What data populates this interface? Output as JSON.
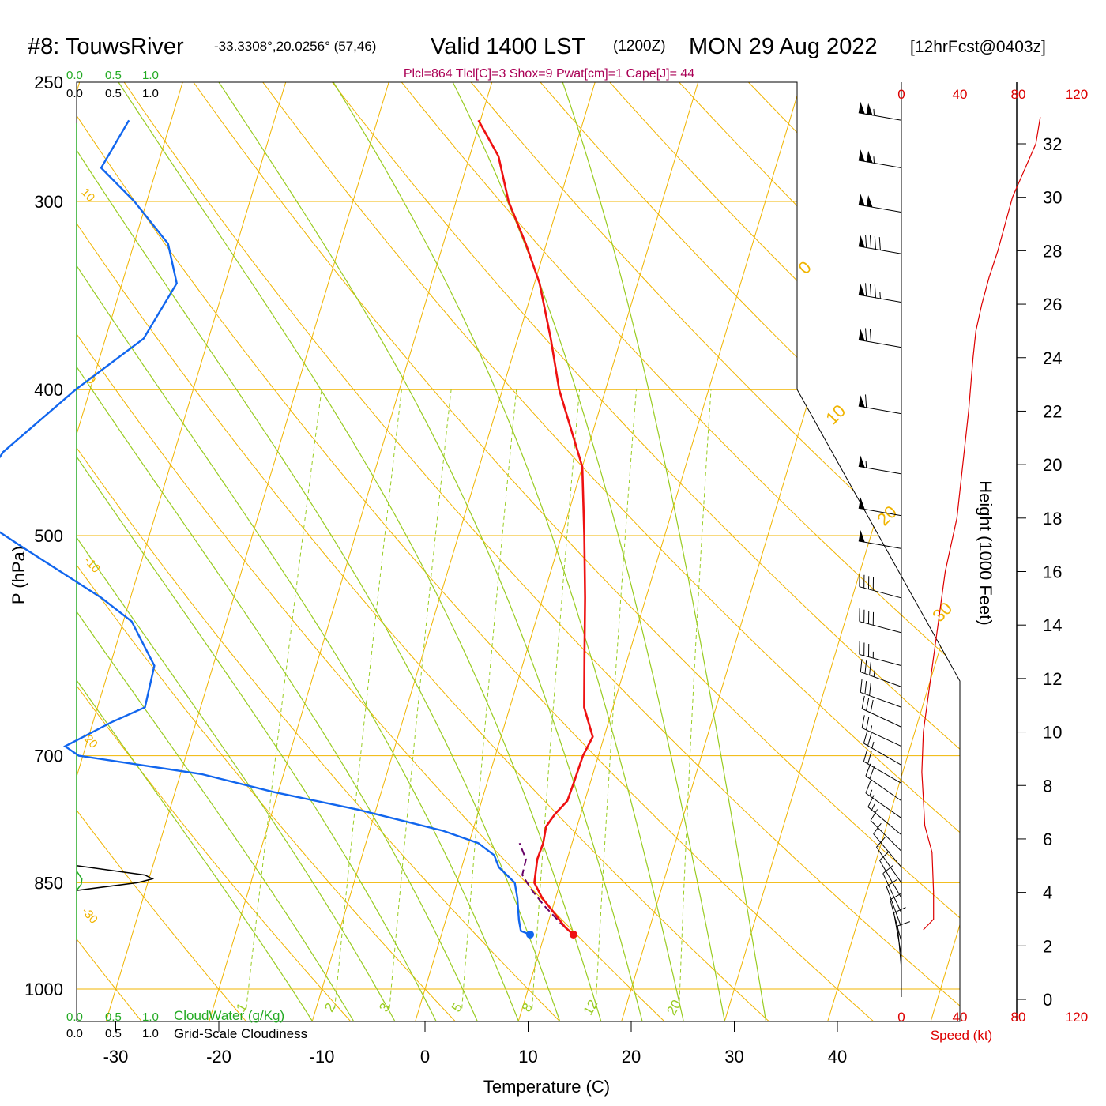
{
  "header": {
    "station": "#8: TouwsRiver",
    "coords": "-33.3308°,20.0256° (57,46)",
    "valid": "Valid 1400 LST",
    "zulu": "(1200Z)",
    "date": "MON 29 Aug 2022",
    "forecast": "[12hrFcst@0403z]",
    "indices": "Plcl=864 Tlcl[C]=3 Shox=9 Pwat[cm]=1 Cape[J]= 44"
  },
  "colors": {
    "temperature": "#ee1111",
    "dewpoint": "#1166ee",
    "parcel": "#660066",
    "isotherm": "#f0b400",
    "dry_adiabat": "#f0b400",
    "moist_adiabat": "#99cc22",
    "mixing_ratio": "#99cc22",
    "cloud_water": "#22aa22",
    "cloudiness": "#000000",
    "wind_speed": "#dd0000",
    "indices": "#aa0055"
  },
  "chart_data": {
    "type": "line",
    "subtype": "skew-t log-p sounding",
    "xlabel": "Temperature (C)",
    "ylabel": "P (hPa)",
    "y2label": "Height (1000 Feet)",
    "x_ticks": [
      "-30",
      "-20",
      "-10",
      "0",
      "10",
      "20",
      "30",
      "40"
    ],
    "p_ticks": [
      "250",
      "300",
      "400",
      "500",
      "700",
      "850",
      "1000"
    ],
    "height_ticks": [
      "0",
      "2",
      "4",
      "6",
      "8",
      "10",
      "12",
      "14",
      "16",
      "18",
      "20",
      "22",
      "24",
      "26",
      "28",
      "30",
      "32"
    ],
    "speed_axis": {
      "label": "Speed (kt)",
      "ticks": [
        "0",
        "40",
        "80",
        "120"
      ]
    },
    "left_scale_labels": [
      "0.0",
      "0.5",
      "1.0"
    ],
    "cloud_water_label": "CloudWater (g/Kg)",
    "cloudiness_label": "Grid-Scale Cloudiness",
    "isotherm_labels": [
      "10",
      "0",
      "-10",
      "-20",
      "-30",
      "0",
      "10",
      "20",
      "30"
    ],
    "mixing_ratio_labels": [
      "1",
      "2",
      "3",
      "5",
      "8",
      "12",
      "20"
    ],
    "mixing_ratio_values": [
      1,
      2,
      3,
      5,
      8,
      12,
      20
    ],
    "skew_per_decade": 44.0,
    "temperature": {
      "p": [
        920,
        910,
        890,
        870,
        850,
        820,
        800,
        780,
        765,
        750,
        730,
        700,
        680,
        650,
        600,
        550,
        500,
        450,
        400,
        370,
        340,
        320,
        300,
        280,
        265
      ],
      "t": [
        12.8,
        11.8,
        10.3,
        8.7,
        7.5,
        7.1,
        7.2,
        7.0,
        7.5,
        8.3,
        8.4,
        8.5,
        8.9,
        7.2,
        5.7,
        4.1,
        2.2,
        0.0,
        -4.5,
        -6.8,
        -9.5,
        -12.0,
        -14.9,
        -17.2,
        -20.2
      ]
    },
    "dewpoint": {
      "p": [
        920,
        915,
        900,
        870,
        850,
        830,
        815,
        800,
        785,
        760,
        740,
        720,
        700,
        690,
        665,
        650,
        610,
        570,
        550,
        510,
        480,
        440,
        400,
        370,
        340,
        320,
        300,
        285,
        265
      ],
      "td": [
        8.6,
        7.6,
        7.1,
        6.3,
        5.6,
        3.6,
        2.8,
        0.9,
        -2.9,
        -11.8,
        -20.4,
        -27.9,
        -40.4,
        -42.0,
        -38.2,
        -35.4,
        -35.7,
        -39.2,
        -42.8,
        -51.7,
        -58.7,
        -56.6,
        -51.4,
        -46.3,
        -44.7,
        -46.7,
        -51.2,
        -55.4,
        -54.1
      ]
    },
    "parcel": {
      "p": [
        920,
        905,
        880,
        860,
        840,
        820,
        800
      ],
      "t": [
        12.8,
        11.3,
        9.1,
        7.5,
        6.1,
        6.0,
        4.9
      ]
    },
    "cloud_water": {
      "p": [
        835,
        845,
        852,
        860
      ],
      "v": [
        0.0,
        0.07,
        0.06,
        0.0
      ]
    },
    "cloudiness": {
      "p": [
        828,
        840,
        845,
        850,
        860
      ],
      "v": [
        0.0,
        0.9,
        1.0,
        0.8,
        0.0
      ]
    },
    "wind_barbs": [
      {
        "p": 265,
        "speed": 105,
        "dir": 280
      },
      {
        "p": 285,
        "speed": 105,
        "dir": 280
      },
      {
        "p": 305,
        "speed": 102,
        "dir": 280
      },
      {
        "p": 325,
        "speed": 90,
        "dir": 280
      },
      {
        "p": 350,
        "speed": 85,
        "dir": 280
      },
      {
        "p": 375,
        "speed": 70,
        "dir": 280
      },
      {
        "p": 415,
        "speed": 60,
        "dir": 280
      },
      {
        "p": 455,
        "speed": 55,
        "dir": 280
      },
      {
        "p": 485,
        "speed": 50,
        "dir": 280
      },
      {
        "p": 510,
        "speed": 50,
        "dir": 280
      },
      {
        "p": 550,
        "speed": 40,
        "dir": 285
      },
      {
        "p": 580,
        "speed": 40,
        "dir": 285
      },
      {
        "p": 610,
        "speed": 35,
        "dir": 285
      },
      {
        "p": 630,
        "speed": 35,
        "dir": 290
      },
      {
        "p": 650,
        "speed": 30,
        "dir": 290
      },
      {
        "p": 670,
        "speed": 30,
        "dir": 295
      },
      {
        "p": 690,
        "speed": 25,
        "dir": 295
      },
      {
        "p": 710,
        "speed": 25,
        "dir": 300
      },
      {
        "p": 730,
        "speed": 20,
        "dir": 300
      },
      {
        "p": 750,
        "speed": 20,
        "dir": 305
      },
      {
        "p": 770,
        "speed": 15,
        "dir": 305
      },
      {
        "p": 790,
        "speed": 15,
        "dir": 310
      },
      {
        "p": 810,
        "speed": 10,
        "dir": 315
      },
      {
        "p": 830,
        "speed": 10,
        "dir": 320
      },
      {
        "p": 850,
        "speed": 10,
        "dir": 325
      },
      {
        "p": 870,
        "speed": 10,
        "dir": 330
      },
      {
        "p": 890,
        "speed": 10,
        "dir": 335
      },
      {
        "p": 910,
        "speed": 10,
        "dir": 340
      },
      {
        "p": 930,
        "speed": 10,
        "dir": 345
      },
      {
        "p": 950,
        "speed": 10,
        "dir": 350
      },
      {
        "p": 970,
        "speed": 10,
        "dir": 355
      }
    ],
    "wind_speed_profile": {
      "height_kft": [
        2.6,
        3.0,
        4.0,
        5.5,
        6.5,
        7.5,
        8.5,
        10.0,
        12.0,
        14.0,
        16.0,
        18.0,
        20.0,
        22.0,
        24.0,
        25.0,
        26.0,
        27.0,
        28.0,
        30.0,
        32.0,
        33.0
      ],
      "speed_kt": [
        15,
        22,
        22,
        21,
        16,
        15,
        14,
        15,
        20,
        25,
        30,
        38,
        42,
        46,
        49,
        51,
        55,
        60,
        66,
        76,
        92,
        95
      ]
    }
  }
}
